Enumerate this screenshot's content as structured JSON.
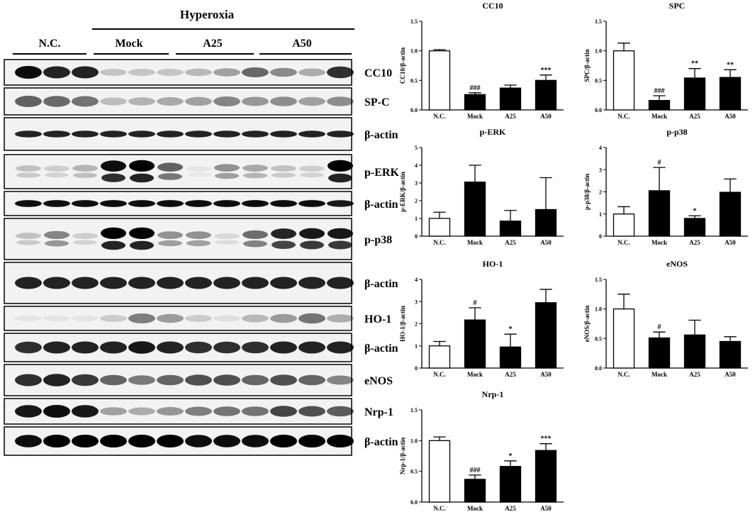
{
  "blot": {
    "header": "Hyperoxia",
    "groups": [
      "N.C.",
      "Mock",
      "A25",
      "A50"
    ],
    "rows": [
      {
        "label": "CC10",
        "y": 84,
        "h": 36,
        "bands": [
          1.0,
          0.9,
          0.9,
          0.2,
          0.2,
          0.2,
          0.25,
          0.35,
          0.6,
          0.45,
          0.3,
          0.85
        ],
        "dark": 0.95
      },
      {
        "label": "SP-C",
        "y": 124,
        "h": 38,
        "bands": [
          0.8,
          0.75,
          0.7,
          0.3,
          0.35,
          0.4,
          0.45,
          0.6,
          0.5,
          0.55,
          0.45,
          0.55
        ],
        "dark": 0.75
      },
      {
        "label": "β-actin",
        "y": 166,
        "h": 46,
        "bands": [
          0.9,
          0.9,
          0.9,
          0.9,
          0.9,
          0.9,
          0.9,
          0.9,
          0.9,
          0.9,
          0.9,
          0.9
        ],
        "dark": 0.95,
        "thin": true
      },
      {
        "label": "p-ERK",
        "y": 218,
        "h": 48,
        "bands": [
          0.2,
          0.15,
          0.25,
          0.95,
          1.0,
          0.6,
          0.05,
          0.4,
          0.3,
          0.2,
          0.15,
          1.0
        ],
        "dark": 1.0,
        "double": true
      },
      {
        "label": "β-actin",
        "y": 270,
        "h": 34,
        "bands": [
          0.95,
          0.95,
          0.95,
          0.95,
          0.95,
          0.95,
          0.95,
          0.95,
          0.95,
          0.95,
          0.95,
          0.9
        ],
        "dark": 1.0,
        "thin": true
      },
      {
        "label": "p-p38",
        "y": 308,
        "h": 58,
        "bands": [
          0.2,
          0.45,
          0.15,
          1.0,
          1.0,
          0.4,
          0.4,
          0.1,
          0.55,
          0.85,
          0.9,
          0.9
        ],
        "dark": 1.0,
        "double": true
      },
      {
        "label": "β-actin",
        "y": 370,
        "h": 58,
        "bands": [
          0.9,
          0.9,
          0.9,
          0.9,
          0.9,
          0.9,
          0.9,
          0.9,
          0.9,
          0.9,
          0.9,
          0.9
        ],
        "dark": 0.95
      },
      {
        "label": "HO-1",
        "y": 432,
        "h": 34,
        "bands": [
          0.05,
          0.05,
          0.05,
          0.2,
          0.6,
          0.45,
          0.2,
          0.1,
          0.3,
          0.45,
          0.65,
          0.35
        ],
        "dark": 0.8
      },
      {
        "label": "β-actin",
        "y": 470,
        "h": 40,
        "bands": [
          0.85,
          0.9,
          0.9,
          0.9,
          0.95,
          0.9,
          0.85,
          0.85,
          0.85,
          0.9,
          0.9,
          0.9
        ],
        "dark": 0.95
      },
      {
        "label": "eNOS",
        "y": 514,
        "h": 44,
        "bands": [
          0.9,
          0.95,
          0.85,
          0.65,
          0.55,
          0.65,
          0.75,
          0.75,
          0.65,
          0.75,
          0.65,
          0.5
        ],
        "dark": 0.9
      },
      {
        "label": "Nrp-1",
        "y": 562,
        "h": 36,
        "bands": [
          0.95,
          1.0,
          0.95,
          0.35,
          0.3,
          0.4,
          0.5,
          0.55,
          0.55,
          0.75,
          0.7,
          0.65
        ],
        "dark": 0.95
      },
      {
        "label": "β-actin",
        "y": 602,
        "h": 40,
        "bands": [
          0.95,
          1.0,
          1.0,
          1.0,
          1.0,
          1.0,
          0.95,
          0.95,
          0.95,
          1.0,
          1.0,
          1.0
        ],
        "dark": 1.0
      }
    ]
  },
  "chart_data": [
    {
      "type": "bar",
      "title": "CC10",
      "ylabel": "CC10/β-actin",
      "categories": [
        "N.C.",
        "Mock",
        "A25",
        "A50"
      ],
      "values": [
        1.0,
        0.26,
        0.37,
        0.5
      ],
      "errors": [
        0.02,
        0.03,
        0.05,
        0.09
      ],
      "annotations": [
        "",
        "###",
        "",
        "***"
      ],
      "ylim": [
        0,
        1.5
      ],
      "yticks": [
        "0.0",
        "0.5",
        "1.0",
        "1.5"
      ],
      "tickvals": [
        0,
        0.5,
        1.0,
        1.5
      ]
    },
    {
      "type": "bar",
      "title": "SPC",
      "ylabel": "SPC/β-actin",
      "categories": [
        "N.C.",
        "Mock",
        "A25",
        "A50"
      ],
      "values": [
        1.0,
        0.16,
        0.54,
        0.55
      ],
      "errors": [
        0.13,
        0.08,
        0.16,
        0.13
      ],
      "annotations": [
        "",
        "###",
        "**",
        "**"
      ],
      "ylim": [
        0,
        1.5
      ],
      "yticks": [
        "0.0",
        "0.5",
        "1.0",
        "1.5"
      ],
      "tickvals": [
        0,
        0.5,
        1.0,
        1.5
      ]
    },
    {
      "type": "bar",
      "title": "p-ERK",
      "ylabel": "p-ERK/β-actin",
      "categories": [
        "N.C.",
        "Mock",
        "A25",
        "A50"
      ],
      "values": [
        1.0,
        3.05,
        0.85,
        1.5
      ],
      "errors": [
        0.35,
        0.95,
        0.6,
        1.8
      ],
      "annotations": [
        "",
        "",
        "",
        ""
      ],
      "ylim": [
        0,
        5
      ],
      "yticks": [
        "0",
        "1",
        "2",
        "3",
        "4",
        "5"
      ],
      "tickvals": [
        0,
        1,
        2,
        3,
        4,
        5
      ]
    },
    {
      "type": "bar",
      "title": "p-p38",
      "ylabel": "p-p38/β-actin",
      "categories": [
        "N.C.",
        "Mock",
        "A25",
        "A50"
      ],
      "values": [
        1.0,
        2.05,
        0.8,
        1.98
      ],
      "errors": [
        0.33,
        1.05,
        0.12,
        0.6
      ],
      "annotations": [
        "",
        "#",
        "*",
        ""
      ],
      "ylim": [
        0,
        4
      ],
      "yticks": [
        "0",
        "1",
        "2",
        "3",
        "4"
      ],
      "tickvals": [
        0,
        1,
        2,
        3,
        4
      ]
    },
    {
      "type": "bar",
      "title": "HO-1",
      "ylabel": "HO-1/β-actin",
      "categories": [
        "N.C.",
        "Mock",
        "A25",
        "A50"
      ],
      "values": [
        1.0,
        2.17,
        0.95,
        2.95
      ],
      "errors": [
        0.2,
        0.55,
        0.58,
        0.6
      ],
      "annotations": [
        "",
        "#",
        "*",
        ""
      ],
      "ylim": [
        0,
        4
      ],
      "yticks": [
        "0",
        "1",
        "2",
        "3",
        "4"
      ],
      "tickvals": [
        0,
        1,
        2,
        3,
        4
      ]
    },
    {
      "type": "bar",
      "title": "eNOS",
      "ylabel": "eNOS/β-actin",
      "categories": [
        "N.C.",
        "Mock",
        "A25",
        "A50"
      ],
      "values": [
        1.0,
        0.51,
        0.56,
        0.45
      ],
      "errors": [
        0.25,
        0.1,
        0.25,
        0.08
      ],
      "annotations": [
        "",
        "#",
        "",
        ""
      ],
      "ylim": [
        0,
        1.5
      ],
      "yticks": [
        "0.0",
        "0.5",
        "1.0",
        "1.5"
      ],
      "tickvals": [
        0,
        0.5,
        1.0,
        1.5
      ]
    },
    {
      "type": "bar",
      "title": "Nrp-1",
      "ylabel": "Nrp-1/β-actin",
      "categories": [
        "N.C.",
        "Mock",
        "A25",
        "A50"
      ],
      "values": [
        1.0,
        0.37,
        0.58,
        0.84
      ],
      "errors": [
        0.06,
        0.07,
        0.09,
        0.11
      ],
      "annotations": [
        "",
        "###",
        "*",
        "***"
      ],
      "ylim": [
        0,
        1.5
      ],
      "yticks": [
        "0.0",
        "0.5",
        "1.0",
        "1.5"
      ],
      "tickvals": [
        0,
        0.5,
        1.0,
        1.5
      ]
    }
  ],
  "colors": {
    "control_bar": "#ffffff",
    "treated_bar": "#000000",
    "blot_bg": "#f2f2f2",
    "band": "#000000"
  }
}
